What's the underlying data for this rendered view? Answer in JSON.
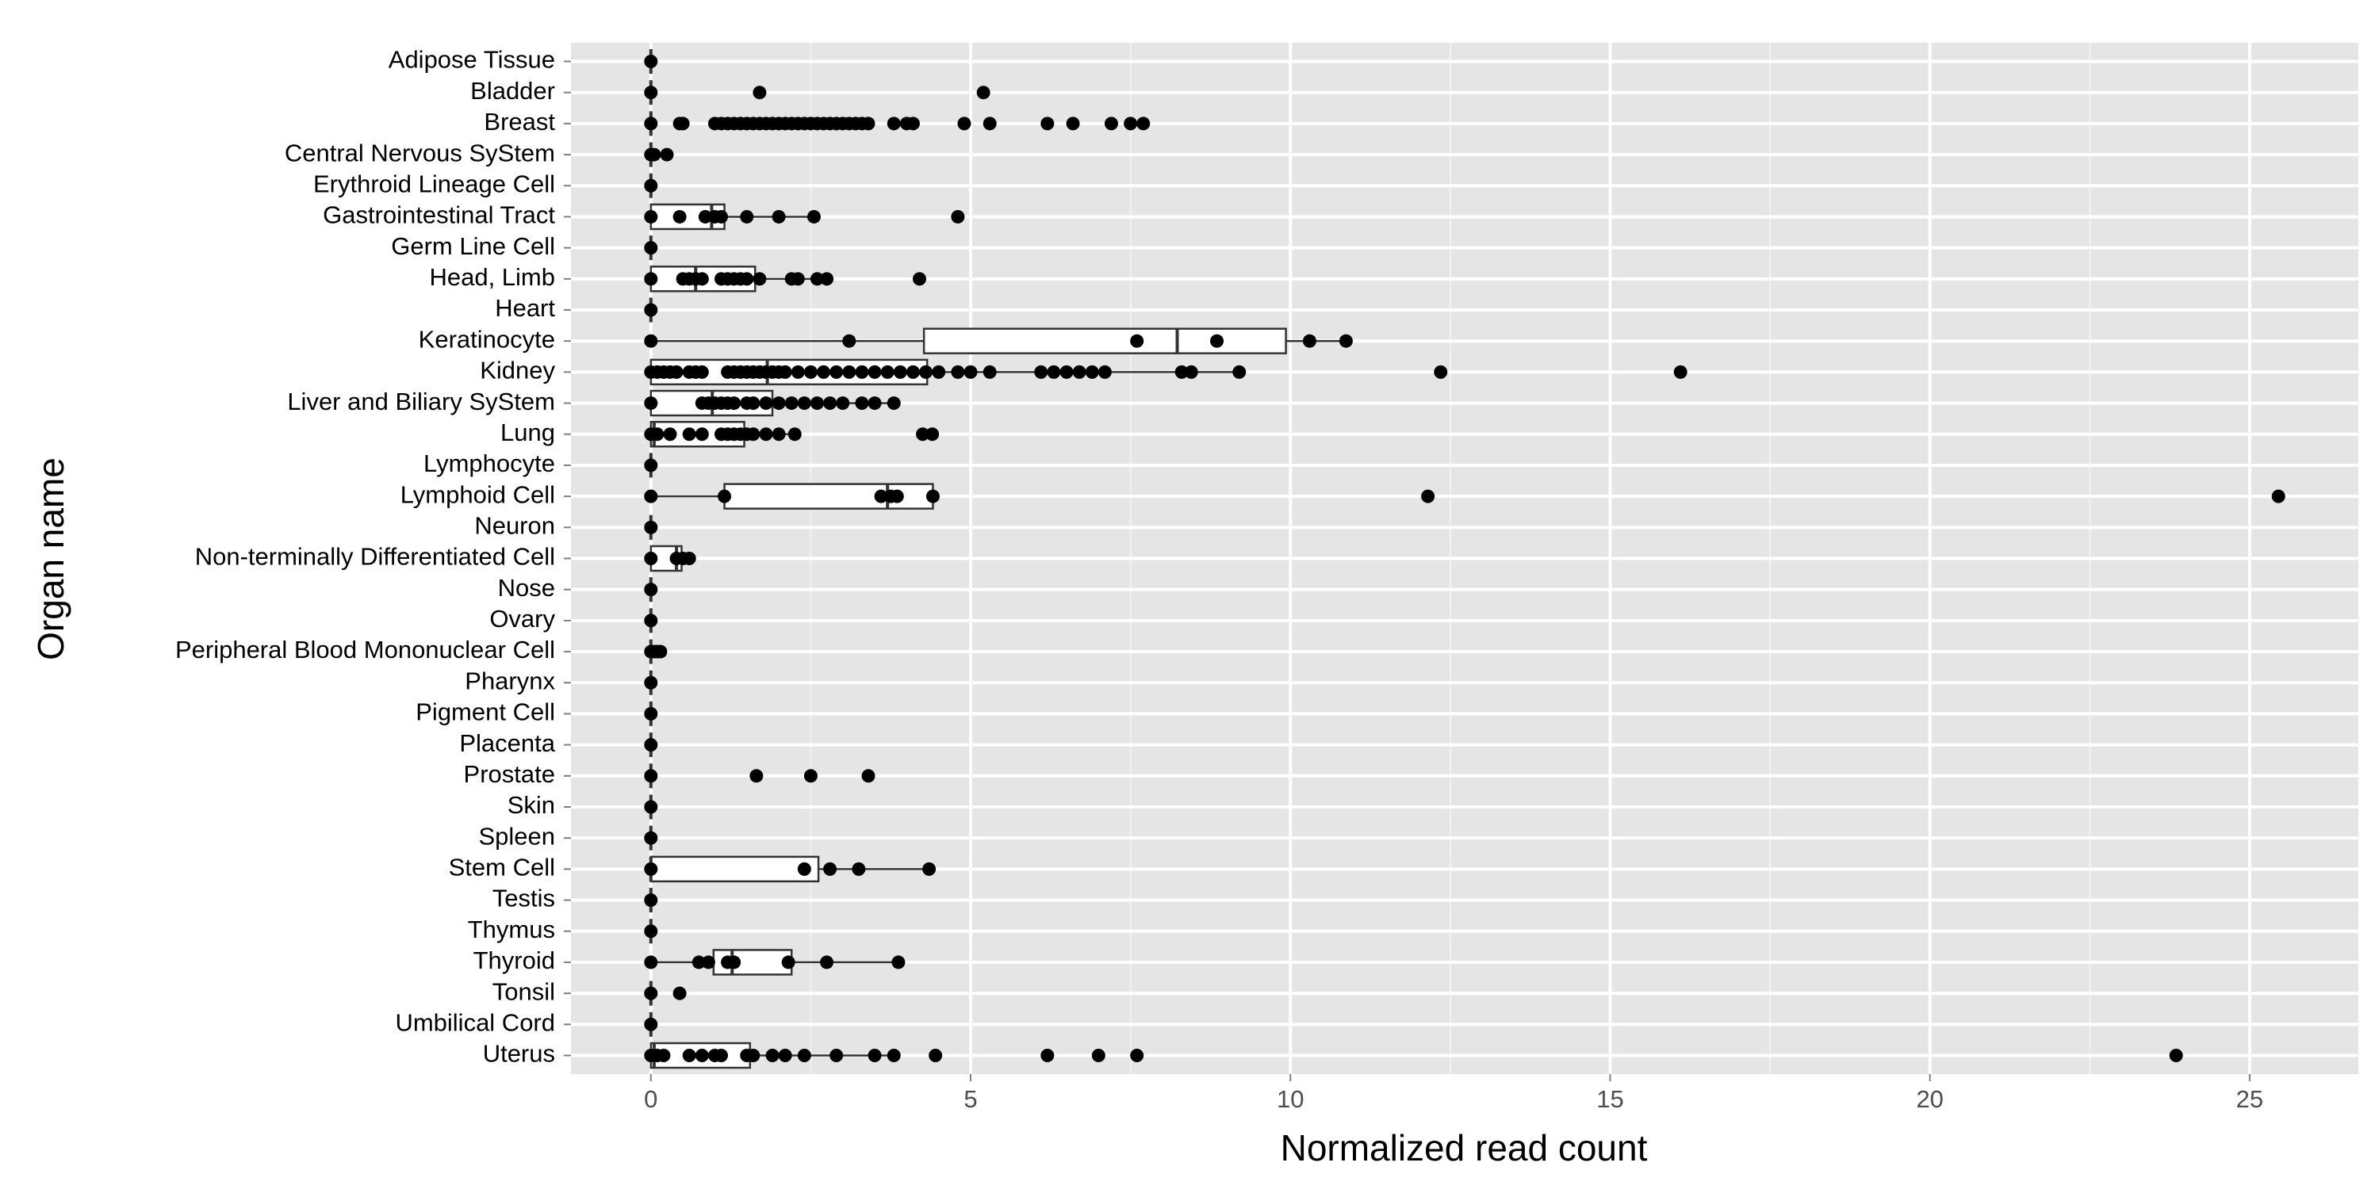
{
  "chart_data": {
    "type": "boxplot",
    "xlabel": "Normalized read count",
    "ylabel": "Organ name",
    "xlim": [
      -1.25,
      26.7
    ],
    "xticks": [
      0,
      5,
      10,
      15,
      20,
      25
    ],
    "grid": true,
    "minor_grid": true,
    "panel_color": "#e5e5e5",
    "point_color": "#000000",
    "box_color": "#ffffff",
    "categories": [
      "Adipose Tissue",
      "Bladder",
      "Breast",
      "Central Nervous SyStem",
      "Erythroid Lineage Cell",
      "Gastrointestinal Tract",
      "Germ Line Cell",
      "Head, Limb",
      "Heart",
      "Keratinocyte",
      "Kidney",
      "Liver and Biliary SyStem",
      "Lung",
      "Lymphocyte",
      "Lymphoid Cell",
      "Neuron",
      "Non-terminally Differentiated Cell",
      "Nose",
      "Ovary",
      "Peripheral Blood Mononuclear Cell",
      "Pharynx",
      "Pigment Cell",
      "Placenta",
      "Prostate",
      "Skin",
      "Spleen",
      "Stem Cell",
      "Testis",
      "Thymus",
      "Thyroid",
      "Tonsil",
      "Umbilical Cord",
      "Uterus"
    ],
    "stats": [
      [
        0,
        0,
        0,
        0,
        0
      ],
      [
        0,
        0,
        0,
        0,
        0
      ],
      [
        0,
        0,
        0,
        0,
        0
      ],
      [
        0,
        0,
        0,
        0,
        0
      ],
      [
        0,
        0,
        0,
        0,
        0
      ],
      [
        0,
        0,
        0.95,
        1.15,
        2.55
      ],
      [
        0,
        0,
        0,
        0,
        0
      ],
      [
        0,
        0,
        0.7,
        1.63,
        2.75
      ],
      [
        0,
        0,
        0,
        0,
        0
      ],
      [
        0,
        4.27,
        8.23,
        9.93,
        10.87
      ],
      [
        0,
        0,
        1.82,
        4.32,
        9.21
      ],
      [
        0,
        0,
        0.96,
        1.9,
        3.8
      ],
      [
        0,
        0,
        0.05,
        1.46,
        2.25
      ],
      [
        0,
        0,
        0,
        0,
        0
      ],
      [
        0,
        1.15,
        3.7,
        4.41,
        4.41
      ],
      [
        0,
        0,
        0,
        0,
        0
      ],
      [
        0,
        0,
        0.4,
        0.48,
        0.48
      ],
      [
        0,
        0,
        0,
        0,
        0
      ],
      [
        0,
        0,
        0,
        0,
        0
      ],
      [
        0,
        0,
        0,
        0,
        0
      ],
      [
        0,
        0,
        0,
        0,
        0
      ],
      [
        0,
        0,
        0,
        0,
        0
      ],
      [
        0,
        0,
        0,
        0,
        0
      ],
      [
        0,
        0,
        0,
        0,
        0
      ],
      [
        0,
        0,
        0,
        0,
        0
      ],
      [
        0,
        0,
        0,
        0,
        0
      ],
      [
        0,
        0,
        0,
        2.62,
        4.35
      ],
      [
        0,
        0,
        0,
        0,
        0
      ],
      [
        0,
        0,
        0,
        0,
        0
      ],
      [
        0,
        0.98,
        1.27,
        2.2,
        3.87
      ],
      [
        0,
        0,
        0,
        0,
        0
      ],
      [
        0,
        0,
        0,
        0,
        0
      ],
      [
        0,
        0,
        0.05,
        1.55,
        3.8
      ]
    ],
    "points": [
      [
        0
      ],
      [
        0,
        1.7,
        5.2
      ],
      [
        0,
        0.45,
        0.5,
        1.0,
        1.1,
        1.2,
        1.3,
        1.4,
        1.5,
        1.6,
        1.7,
        1.8,
        1.9,
        2.0,
        2.1,
        2.2,
        2.3,
        2.4,
        2.5,
        2.6,
        2.7,
        2.8,
        2.9,
        3.0,
        3.1,
        3.2,
        3.3,
        3.4,
        3.8,
        4.0,
        4.1,
        4.9,
        5.3,
        6.2,
        6.6,
        7.2,
        7.5,
        7.7
      ],
      [
        0,
        0.05,
        0.25
      ],
      [
        0
      ],
      [
        0,
        0.45,
        0.85,
        1.0,
        1.1,
        1.5,
        2.0,
        2.55,
        4.8
      ],
      [
        0
      ],
      [
        0,
        0.5,
        0.6,
        0.7,
        0.8,
        1.1,
        1.2,
        1.3,
        1.4,
        1.5,
        1.7,
        2.2,
        2.3,
        2.6,
        2.75,
        4.2
      ],
      [
        0
      ],
      [
        0,
        3.1,
        7.6,
        8.85,
        10.3,
        10.87
      ],
      [
        0,
        0.1,
        0.2,
        0.3,
        0.4,
        0.6,
        0.7,
        0.8,
        1.2,
        1.3,
        1.4,
        1.5,
        1.6,
        1.7,
        1.8,
        1.9,
        2.0,
        2.1,
        2.3,
        2.5,
        2.7,
        2.9,
        3.1,
        3.3,
        3.5,
        3.7,
        3.9,
        4.1,
        4.3,
        4.5,
        4.8,
        5.0,
        5.3,
        6.1,
        6.3,
        6.5,
        6.7,
        6.9,
        7.1,
        8.3,
        8.45,
        9.2,
        12.35,
        16.1
      ],
      [
        0,
        0.8,
        0.9,
        1.0,
        1.1,
        1.2,
        1.3,
        1.5,
        1.6,
        1.8,
        2.0,
        2.2,
        2.4,
        2.6,
        2.8,
        3.0,
        3.3,
        3.5,
        3.8
      ],
      [
        0,
        0.1,
        0.3,
        0.6,
        0.8,
        1.1,
        1.2,
        1.3,
        1.4,
        1.5,
        1.6,
        1.8,
        2.0,
        2.25,
        4.25,
        4.4
      ],
      [
        0
      ],
      [
        0,
        1.15,
        3.6,
        3.75,
        3.85,
        4.41,
        12.15,
        25.45
      ],
      [
        0
      ],
      [
        0,
        0.4,
        0.5,
        0.6
      ],
      [
        0
      ],
      [
        0
      ],
      [
        0,
        0.05,
        0.1,
        0.15
      ],
      [
        0
      ],
      [
        0
      ],
      [
        0
      ],
      [
        0,
        1.65,
        2.5,
        3.4
      ],
      [
        0
      ],
      [
        0
      ],
      [
        0,
        2.4,
        2.8,
        3.25,
        4.35
      ],
      [
        0
      ],
      [
        0
      ],
      [
        0,
        0.75,
        0.9,
        1.2,
        1.3,
        2.15,
        2.75,
        3.87
      ],
      [
        0,
        0.45
      ],
      [
        0
      ],
      [
        0,
        0.1,
        0.2,
        0.6,
        0.8,
        1.0,
        1.1,
        1.5,
        1.6,
        1.9,
        2.1,
        2.4,
        2.9,
        3.5,
        3.8,
        4.45,
        6.2,
        7.0,
        7.6,
        23.85
      ]
    ]
  }
}
